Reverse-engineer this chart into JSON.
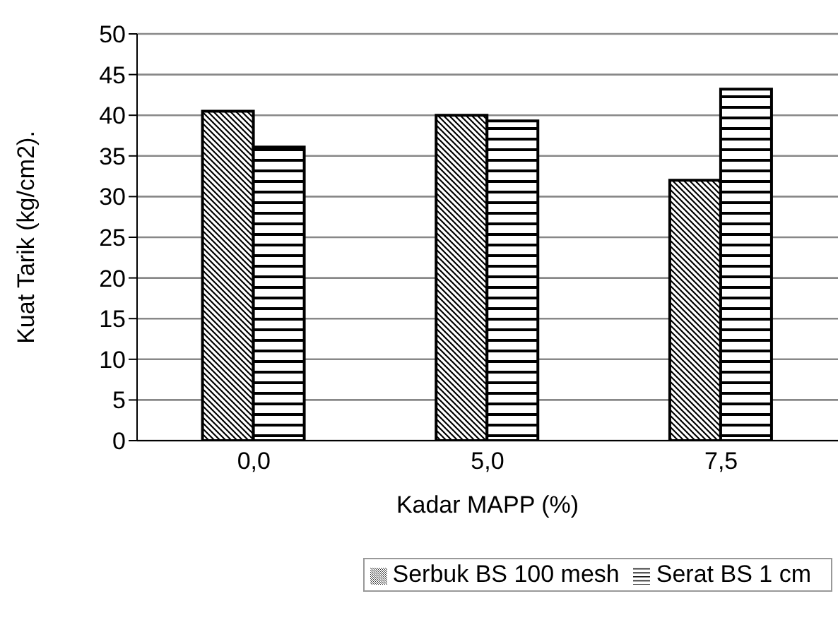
{
  "chart_data": {
    "type": "bar",
    "xlabel": "Kadar MAPP (%)",
    "ylabel": "Kuat Tarik (kg/cm2).",
    "categories": [
      "0,0",
      "5,0",
      "7,5"
    ],
    "series": [
      {
        "name": "Serbuk BS 100 mesh",
        "color": "#000000",
        "values": [
          40.5,
          40.0,
          32.0
        ]
      },
      {
        "name": "Serat BS 1 cm",
        "color": "#000000",
        "values": [
          36.1,
          39.3,
          43.2
        ]
      }
    ],
    "ylim": [
      0,
      50
    ],
    "yticks": [
      0,
      5,
      10,
      15,
      20,
      25,
      30,
      35,
      40,
      45,
      50
    ],
    "grid": "y",
    "legend": "bottom"
  }
}
